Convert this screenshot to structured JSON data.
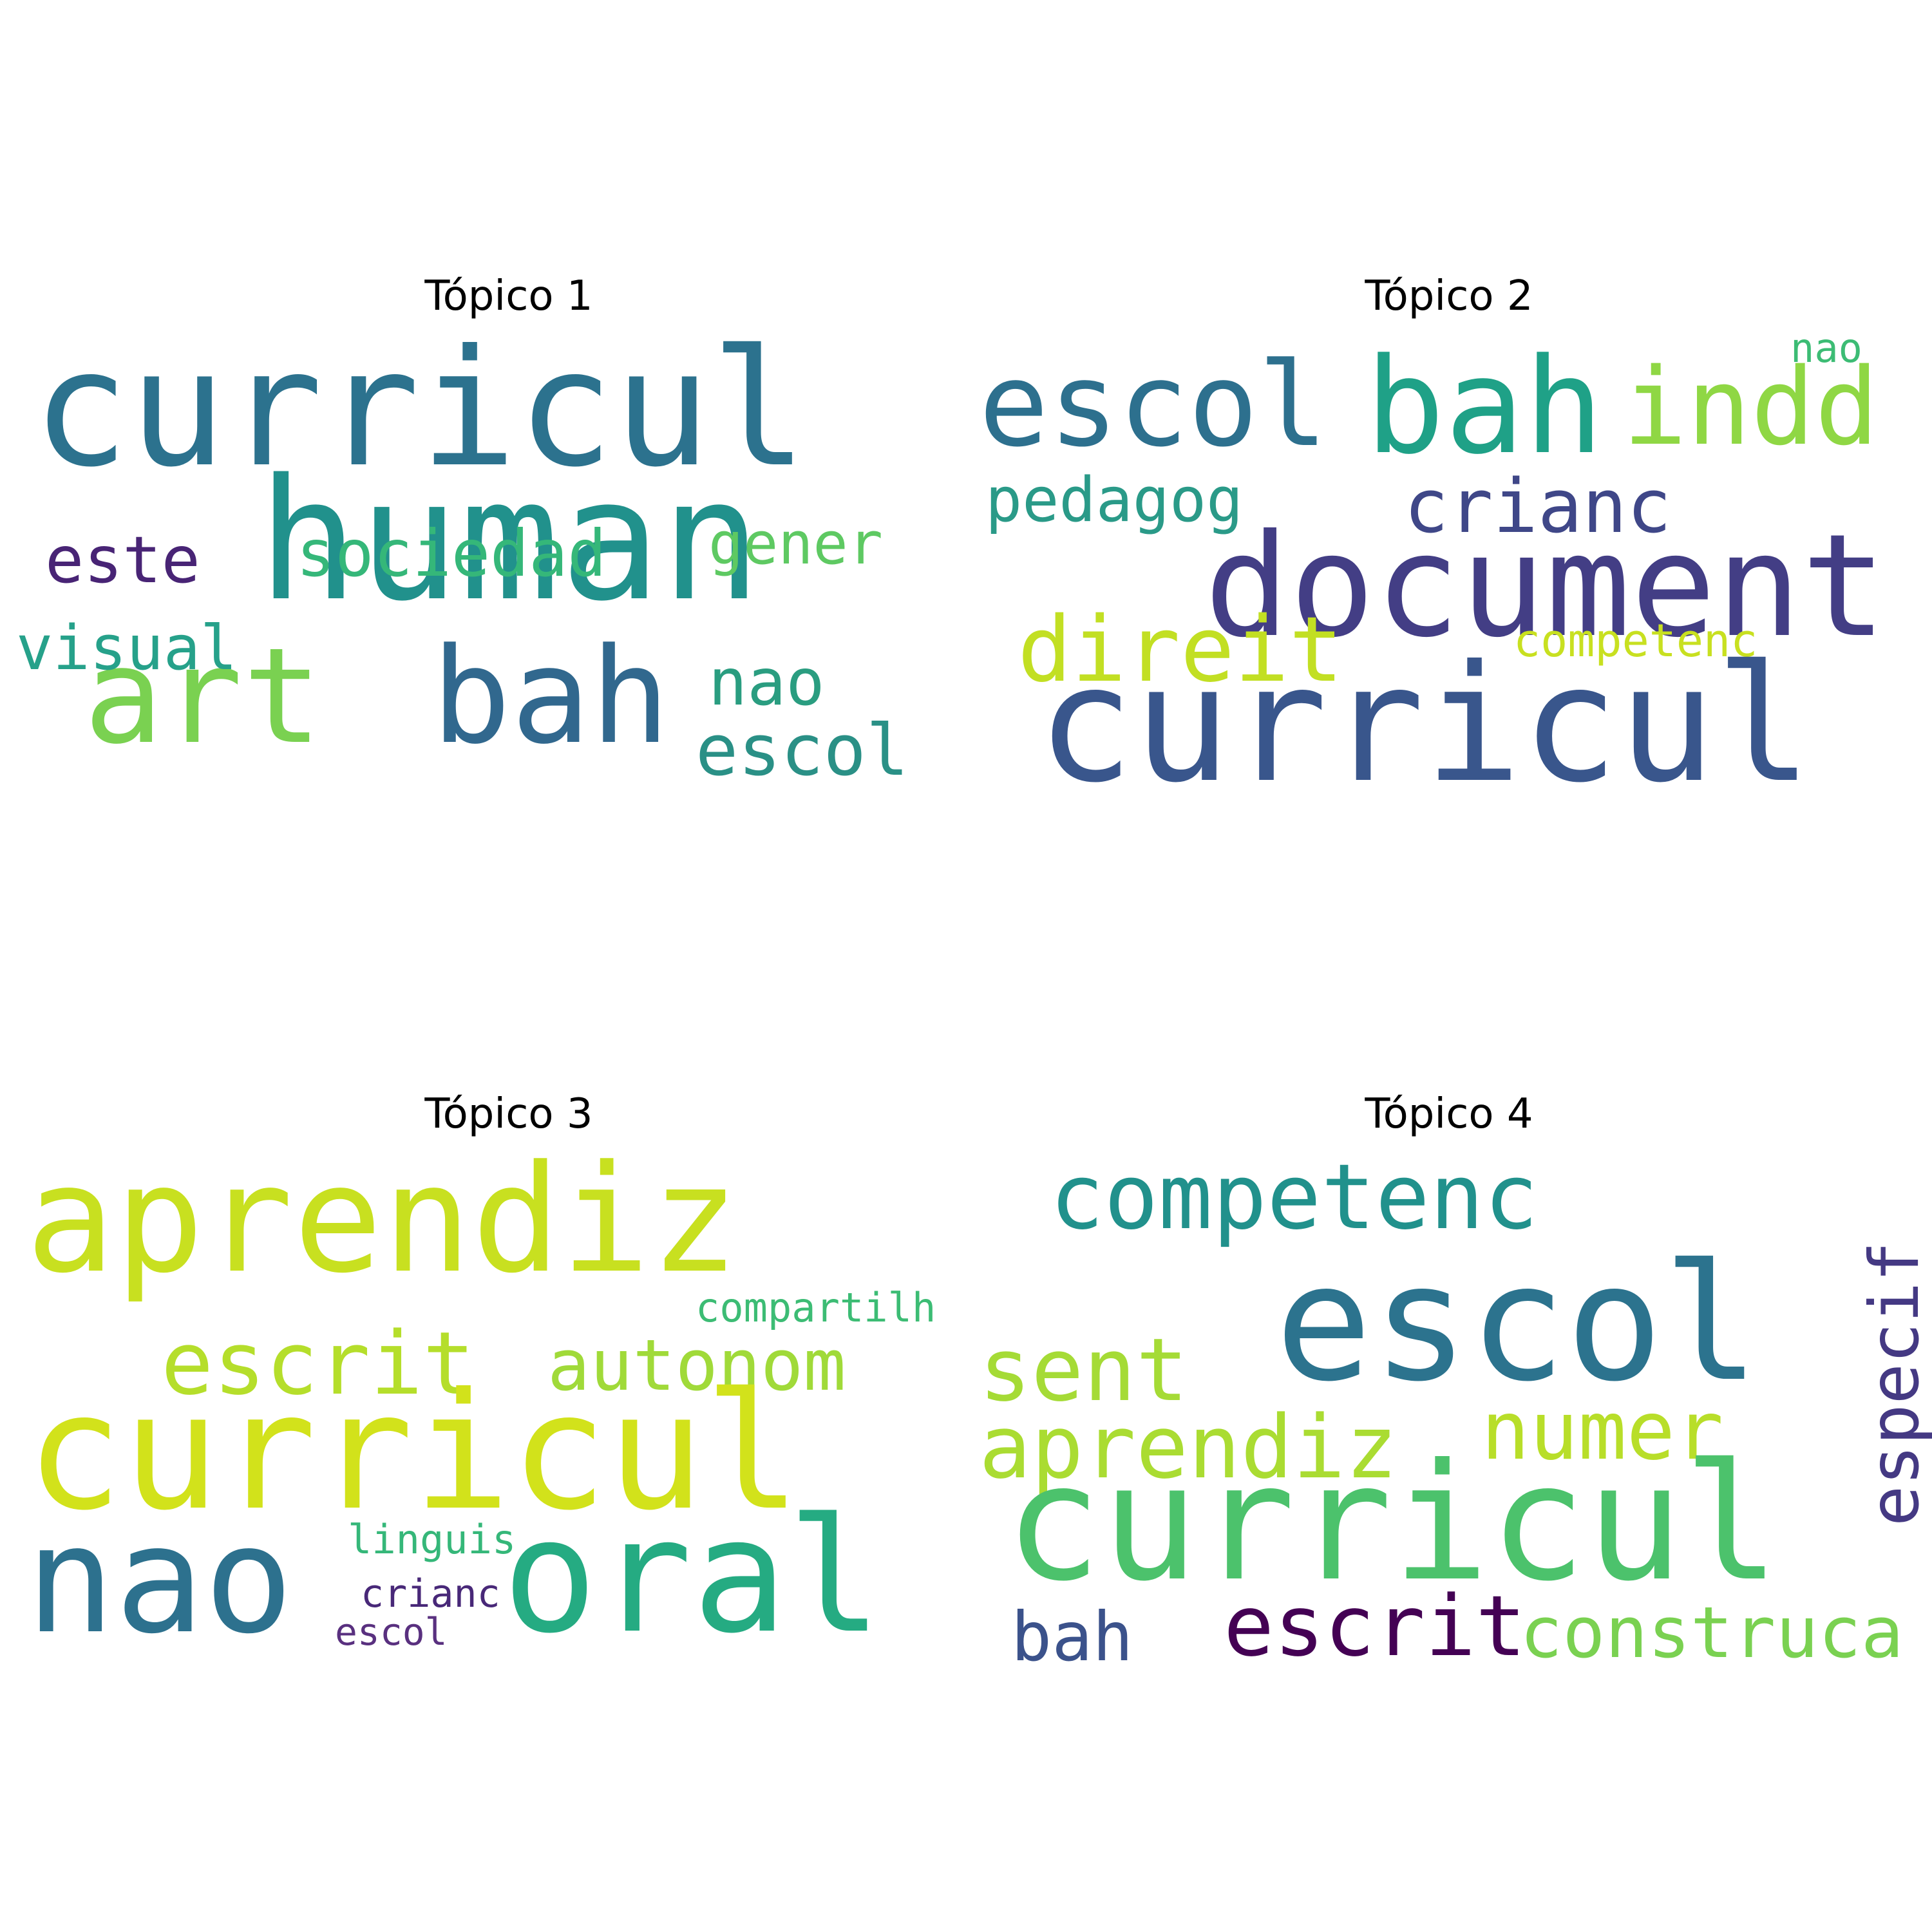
{
  "topics": [
    {
      "title": "Tópico 1",
      "words": [
        {
          "text": "curricul",
          "color": "#2c728e"
        },
        {
          "text": "human",
          "color": "#21918c"
        },
        {
          "text": "art",
          "color": "#7ad151"
        },
        {
          "text": "bah",
          "color": "#31688e"
        },
        {
          "text": "escol",
          "color": "#2a9086"
        },
        {
          "text": "nao",
          "color": "#2a9d80"
        },
        {
          "text": "sociedad",
          "color": "#35b779"
        },
        {
          "text": "gener",
          "color": "#5ec962"
        },
        {
          "text": "este",
          "color": "#482475"
        },
        {
          "text": "visual",
          "color": "#26a18a"
        }
      ]
    },
    {
      "title": "Tópico 2",
      "words": [
        {
          "text": "escol",
          "color": "#2d708e"
        },
        {
          "text": "bah",
          "color": "#1fa187"
        },
        {
          "text": "indd",
          "color": "#8fd744"
        },
        {
          "text": "nao",
          "color": "#3cbc74"
        },
        {
          "text": "pedagog",
          "color": "#2a9a88"
        },
        {
          "text": "crianc",
          "color": "#3f4788"
        },
        {
          "text": "document",
          "color": "#433e85"
        },
        {
          "text": "direit",
          "color": "#c2df23"
        },
        {
          "text": "competenc",
          "color": "#c8e020"
        },
        {
          "text": "curricul",
          "color": "#39568c"
        }
      ]
    },
    {
      "title": "Tópico 3",
      "words": [
        {
          "text": "aprendiz",
          "color": "#c8e020"
        },
        {
          "text": "compartilh",
          "color": "#3cbc74"
        },
        {
          "text": "escrit",
          "color": "#b5de2b"
        },
        {
          "text": "autonom",
          "color": "#a0da39"
        },
        {
          "text": "curricul",
          "color": "#d2e21b"
        },
        {
          "text": "nao",
          "color": "#2d718e"
        },
        {
          "text": "oral",
          "color": "#25ab82"
        },
        {
          "text": "linguis",
          "color": "#35b779"
        },
        {
          "text": "crianc",
          "color": "#482878"
        },
        {
          "text": "escol",
          "color": "#59307f"
        }
      ]
    },
    {
      "title": "Tópico 4",
      "words": [
        {
          "text": "competenc",
          "color": "#21918c"
        },
        {
          "text": "escol",
          "color": "#2c738e"
        },
        {
          "text": "sent",
          "color": "#a5db36"
        },
        {
          "text": "aprendiz",
          "color": "#aadc32"
        },
        {
          "text": "numer",
          "color": "#b8de29"
        },
        {
          "text": "especif",
          "color": "#443983"
        },
        {
          "text": "curricul",
          "color": "#4cc26c"
        },
        {
          "text": "bah",
          "color": "#3b528b"
        },
        {
          "text": "escrit",
          "color": "#440154"
        },
        {
          "text": "construca",
          "color": "#7ad151"
        }
      ]
    }
  ]
}
